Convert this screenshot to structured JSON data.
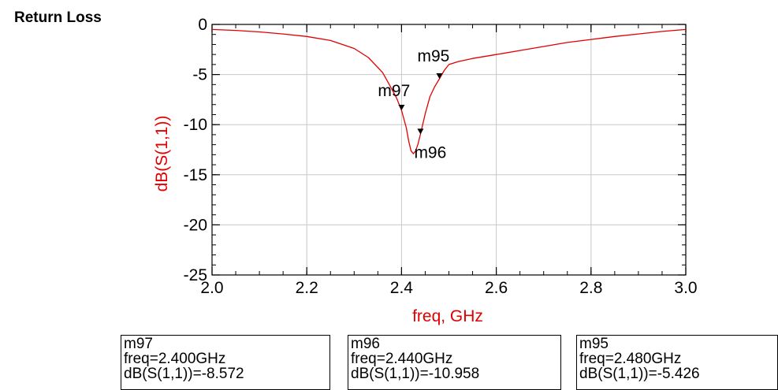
{
  "page": {
    "title": "Return Loss"
  },
  "chart_data": {
    "type": "line",
    "title": "",
    "xlabel": "freq, GHz",
    "ylabel": "dB(S(1,1))",
    "xlim": [
      2.0,
      3.0
    ],
    "ylim": [
      -25,
      0
    ],
    "xticks": [
      "2.0",
      "2.2",
      "2.4",
      "2.6",
      "2.8",
      "3.0"
    ],
    "yticks": [
      "0",
      "-5",
      "-10",
      "-15",
      "-20",
      "-25"
    ],
    "grid": true,
    "line_color": "#e00000",
    "series": [
      {
        "x": [
          2.0,
          2.05,
          2.1,
          2.15,
          2.2,
          2.25,
          2.3,
          2.33,
          2.36,
          2.38,
          2.39,
          2.4,
          2.41,
          2.415,
          2.42,
          2.425,
          2.43,
          2.435,
          2.44,
          2.45,
          2.46,
          2.47,
          2.48,
          2.49,
          2.5,
          2.52,
          2.55,
          2.6,
          2.65,
          2.7,
          2.75,
          2.8,
          2.85,
          2.9,
          2.95,
          3.0
        ],
        "y": [
          -0.5,
          -0.6,
          -0.75,
          -0.95,
          -1.2,
          -1.6,
          -2.4,
          -3.3,
          -4.8,
          -6.5,
          -7.4,
          -8.572,
          -10.3,
          -11.6,
          -12.6,
          -12.9,
          -12.6,
          -11.9,
          -10.958,
          -8.9,
          -7.2,
          -6.2,
          -5.426,
          -4.6,
          -4.0,
          -3.7,
          -3.4,
          -3.0,
          -2.6,
          -2.2,
          -1.8,
          -1.5,
          -1.2,
          -0.95,
          -0.7,
          -0.5
        ]
      }
    ],
    "markers": [
      {
        "name": "m97",
        "x": 2.4,
        "y": -8.572,
        "lines": [
          "m97",
          "freq=2.400GHz",
          "dB(S(1,1))=-8.572"
        ]
      },
      {
        "name": "m96",
        "x": 2.44,
        "y": -10.958,
        "lines": [
          "m96",
          "freq=2.440GHz",
          "dB(S(1,1))=-10.958"
        ]
      },
      {
        "name": "m95",
        "x": 2.48,
        "y": -5.426,
        "lines": [
          "m95",
          "freq=2.480GHz",
          "dB(S(1,1))=-5.426"
        ]
      }
    ]
  }
}
